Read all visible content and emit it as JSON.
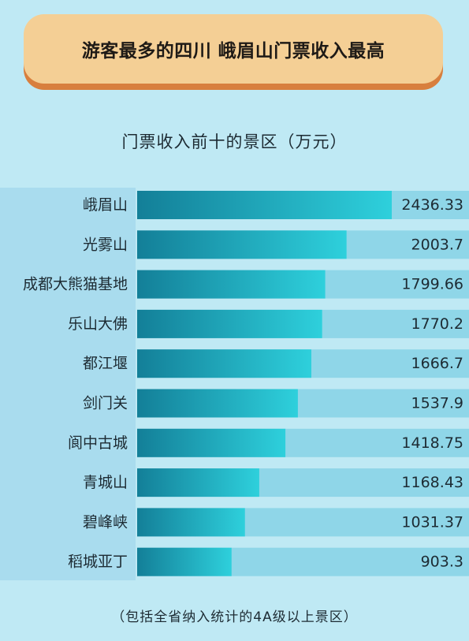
{
  "banner": {
    "title": "游客最多的四川 峨眉山门票收入最高"
  },
  "footnote": "（包括全省纳入统计的4A级以上景区）",
  "colors": {
    "bar_dark": "#137f98",
    "bar_light": "#2ed0dc",
    "track": "#8fd6e8",
    "background": "#bfe9f4",
    "banner": "#f4cf95",
    "banner_shadow": "#d87f3e"
  },
  "chart_data": {
    "type": "bar",
    "orientation": "horizontal",
    "title": "门票收入前十的景区（万元）",
    "categories": [
      "峨眉山",
      "光雾山",
      "成都大熊猫基地",
      "乐山大佛",
      "都江堰",
      "剑门关",
      "阆中古城",
      "青城山",
      "碧峰峡",
      "稻城亚丁"
    ],
    "values": [
      2436.33,
      2003.7,
      1799.66,
      1770.2,
      1666.7,
      1537.9,
      1418.75,
      1168.43,
      1031.37,
      903.3
    ],
    "value_labels": [
      "2436.33",
      "2003.7",
      "1799.66",
      "1770.2",
      "1666.7",
      "1537.9",
      "1418.75",
      "1168.43",
      "1031.37",
      "903.3"
    ],
    "xlim": [
      0,
      2436.33
    ],
    "grid": false,
    "legend": "none"
  }
}
